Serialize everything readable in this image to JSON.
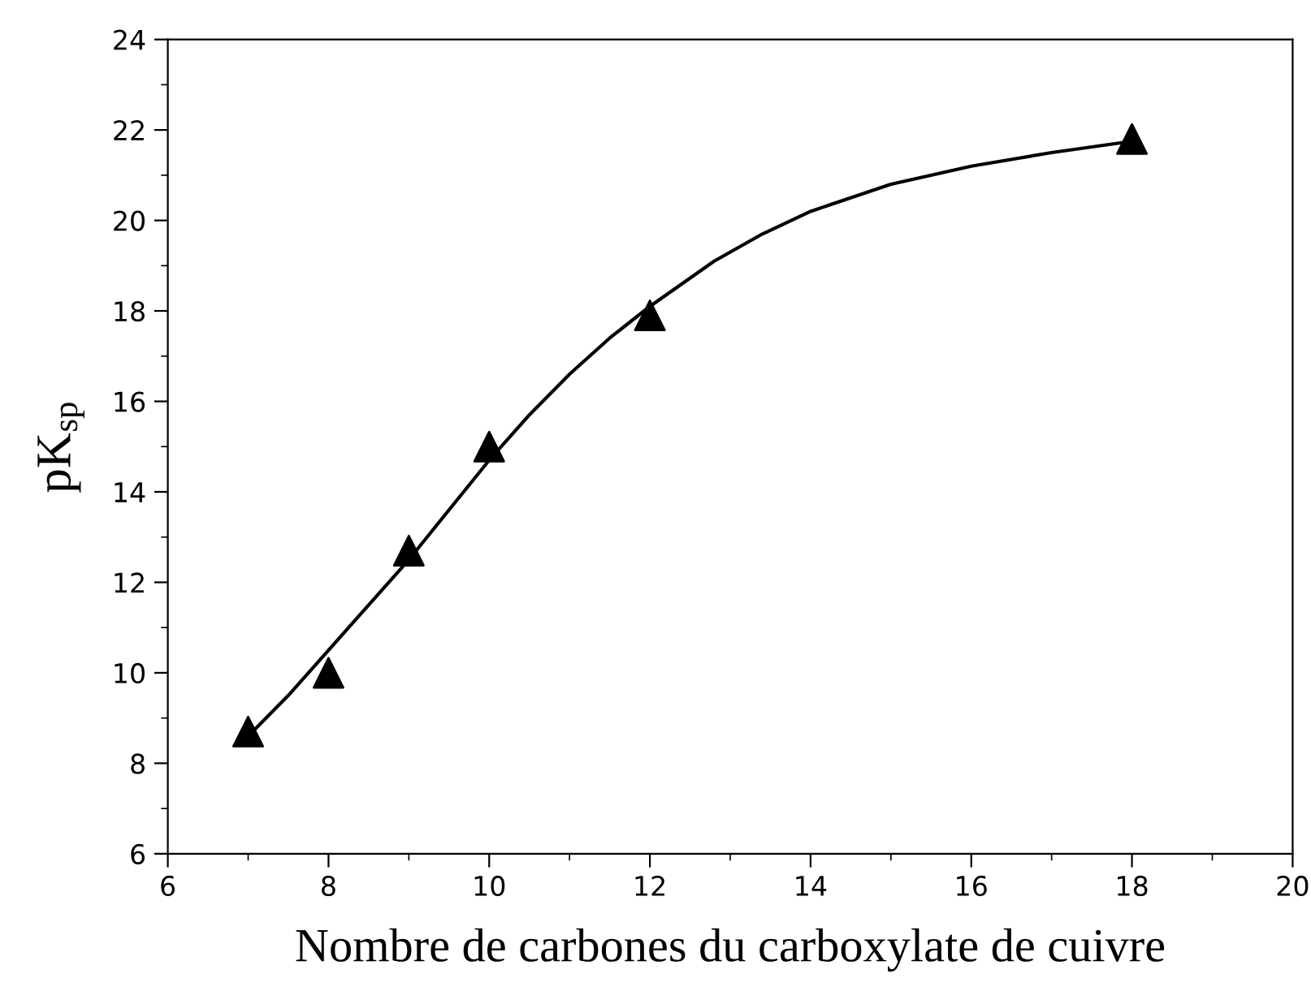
{
  "chart_data": {
    "type": "scatter",
    "xlabel": "Nombre de carbones du carboxylate de cuivre",
    "ylabel": "pK$_{sp}$",
    "xlim": [
      6,
      20
    ],
    "xticks": [
      6,
      8,
      10,
      12,
      14,
      16,
      18,
      20
    ],
    "ylim": [
      6,
      24
    ],
    "yticks": [
      6,
      8,
      10,
      12,
      14,
      16,
      18,
      20,
      22,
      24
    ],
    "grid": false,
    "series": [
      {
        "color": "#000000",
        "marker": "triangle",
        "x": [
          7,
          8,
          9,
          10,
          12,
          18
        ],
        "values": [
          8.7,
          10.0,
          12.7,
          15.0,
          17.9,
          21.8
        ]
      },
      {
        "type": "line",
        "color": "#000000",
        "marker": "none",
        "line_style": "solid",
        "x": [
          7,
          7.5,
          8,
          8.5,
          9,
          9.5,
          10,
          10.5,
          11,
          11.5,
          12,
          12.8,
          13.4,
          14,
          15,
          16,
          17,
          18
        ],
        "values": [
          8.6,
          9.5,
          10.5,
          11.5,
          12.5,
          13.6,
          14.7,
          15.7,
          16.6,
          17.4,
          18.1,
          19.1,
          19.7,
          20.2,
          20.8,
          21.2,
          21.5,
          21.75
        ]
      }
    ]
  }
}
